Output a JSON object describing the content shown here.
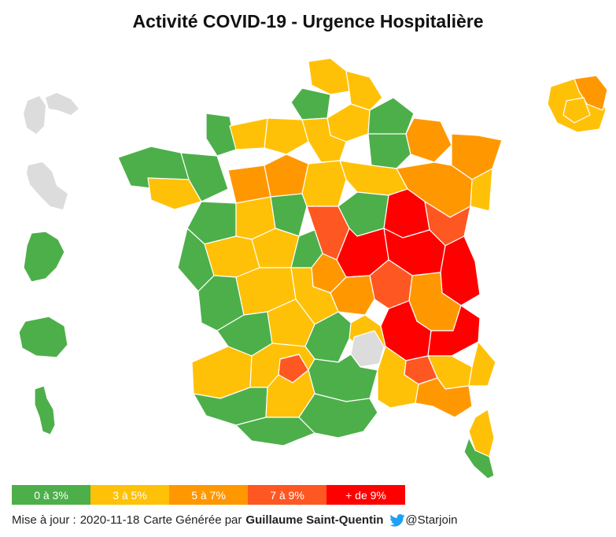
{
  "title": "Activité COVID-19 - Urgence Hospitalière",
  "colors": {
    "c1": "#4daf4a",
    "c2": "#ffc107",
    "c3": "#ff9800",
    "c4": "#ff5722",
    "c5": "#ff0000",
    "nodata": "#dcdcdc"
  },
  "legend": [
    {
      "label": "0 à 3%",
      "color": "#4daf4a"
    },
    {
      "label": "3 à 5%",
      "color": "#ffc107"
    },
    {
      "label": "5 à 7%",
      "color": "#ff9800"
    },
    {
      "label": "7 à 9%",
      "color": "#ff5722"
    },
    {
      "label": "+ de 9%",
      "color": "#ff0000"
    }
  ],
  "footer": {
    "update_label": "Mise à jour :",
    "date": "2020-11-18",
    "credit": "Carte Générée par",
    "author": "Guillaume Saint-Quentin",
    "handle": "@Starjoin",
    "twitter_icon": "twitter-bird-icon"
  }
}
